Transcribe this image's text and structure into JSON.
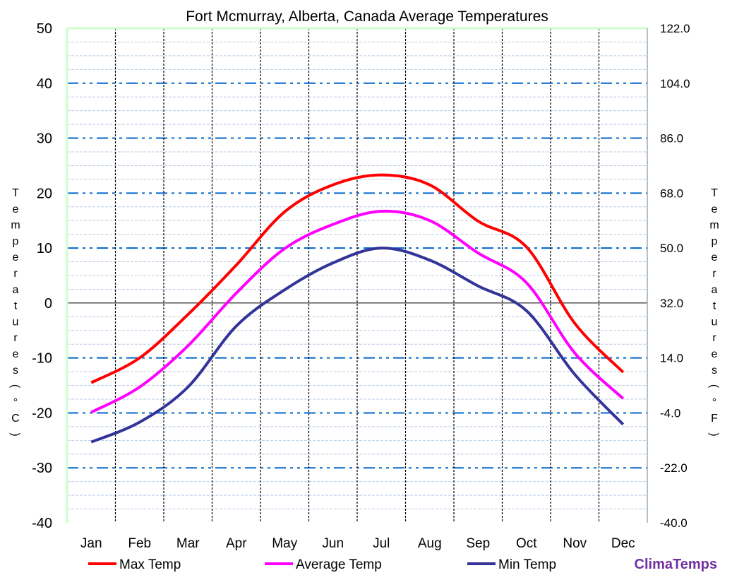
{
  "chart_data": {
    "type": "line",
    "title": "Fort Mcmurray, Alberta, Canada Average  Temperatures",
    "ylabel_left": "Temperatures (°C)",
    "ylabel_right": "Temperatures (°F)",
    "categories": [
      "Jan",
      "Feb",
      "Mar",
      "Apr",
      "May",
      "Jun",
      "Jul",
      "Aug",
      "Sep",
      "Oct",
      "Nov",
      "Dec"
    ],
    "ylim": [
      -40,
      50
    ],
    "yticks_left": [
      "50",
      "40",
      "30",
      "20",
      "10",
      "0",
      "-10",
      "-20",
      "-30",
      "-40"
    ],
    "yticks_right": [
      "122.0",
      "104.0",
      "86.0",
      "68.0",
      "50.0",
      "32.0",
      "14.0",
      "-4.0",
      "-22.0",
      "-40.0"
    ],
    "grid": true,
    "legend_position": "bottom",
    "series": [
      {
        "name": "Max Temp",
        "color": "#ff0000",
        "values": [
          -14.5,
          -10.0,
          -2.1,
          6.9,
          16.6,
          21.5,
          23.3,
          21.5,
          14.9,
          10.2,
          -3.7,
          -12.6
        ]
      },
      {
        "name": "Average Temp",
        "color": "#ff00ff",
        "values": [
          -19.9,
          -15.3,
          -7.8,
          1.8,
          9.9,
          14.3,
          16.7,
          15.0,
          9.1,
          3.7,
          -9.1,
          -17.4
        ]
      },
      {
        "name": "Min Temp",
        "color": "#333399",
        "values": [
          -25.3,
          -21.7,
          -15.3,
          -4.2,
          2.4,
          7.3,
          10.0,
          7.8,
          3.1,
          -1.4,
          -13.0,
          -22.1
        ]
      }
    ]
  },
  "brand": {
    "text": "ClimaTemps",
    "color": "#7030a0"
  }
}
